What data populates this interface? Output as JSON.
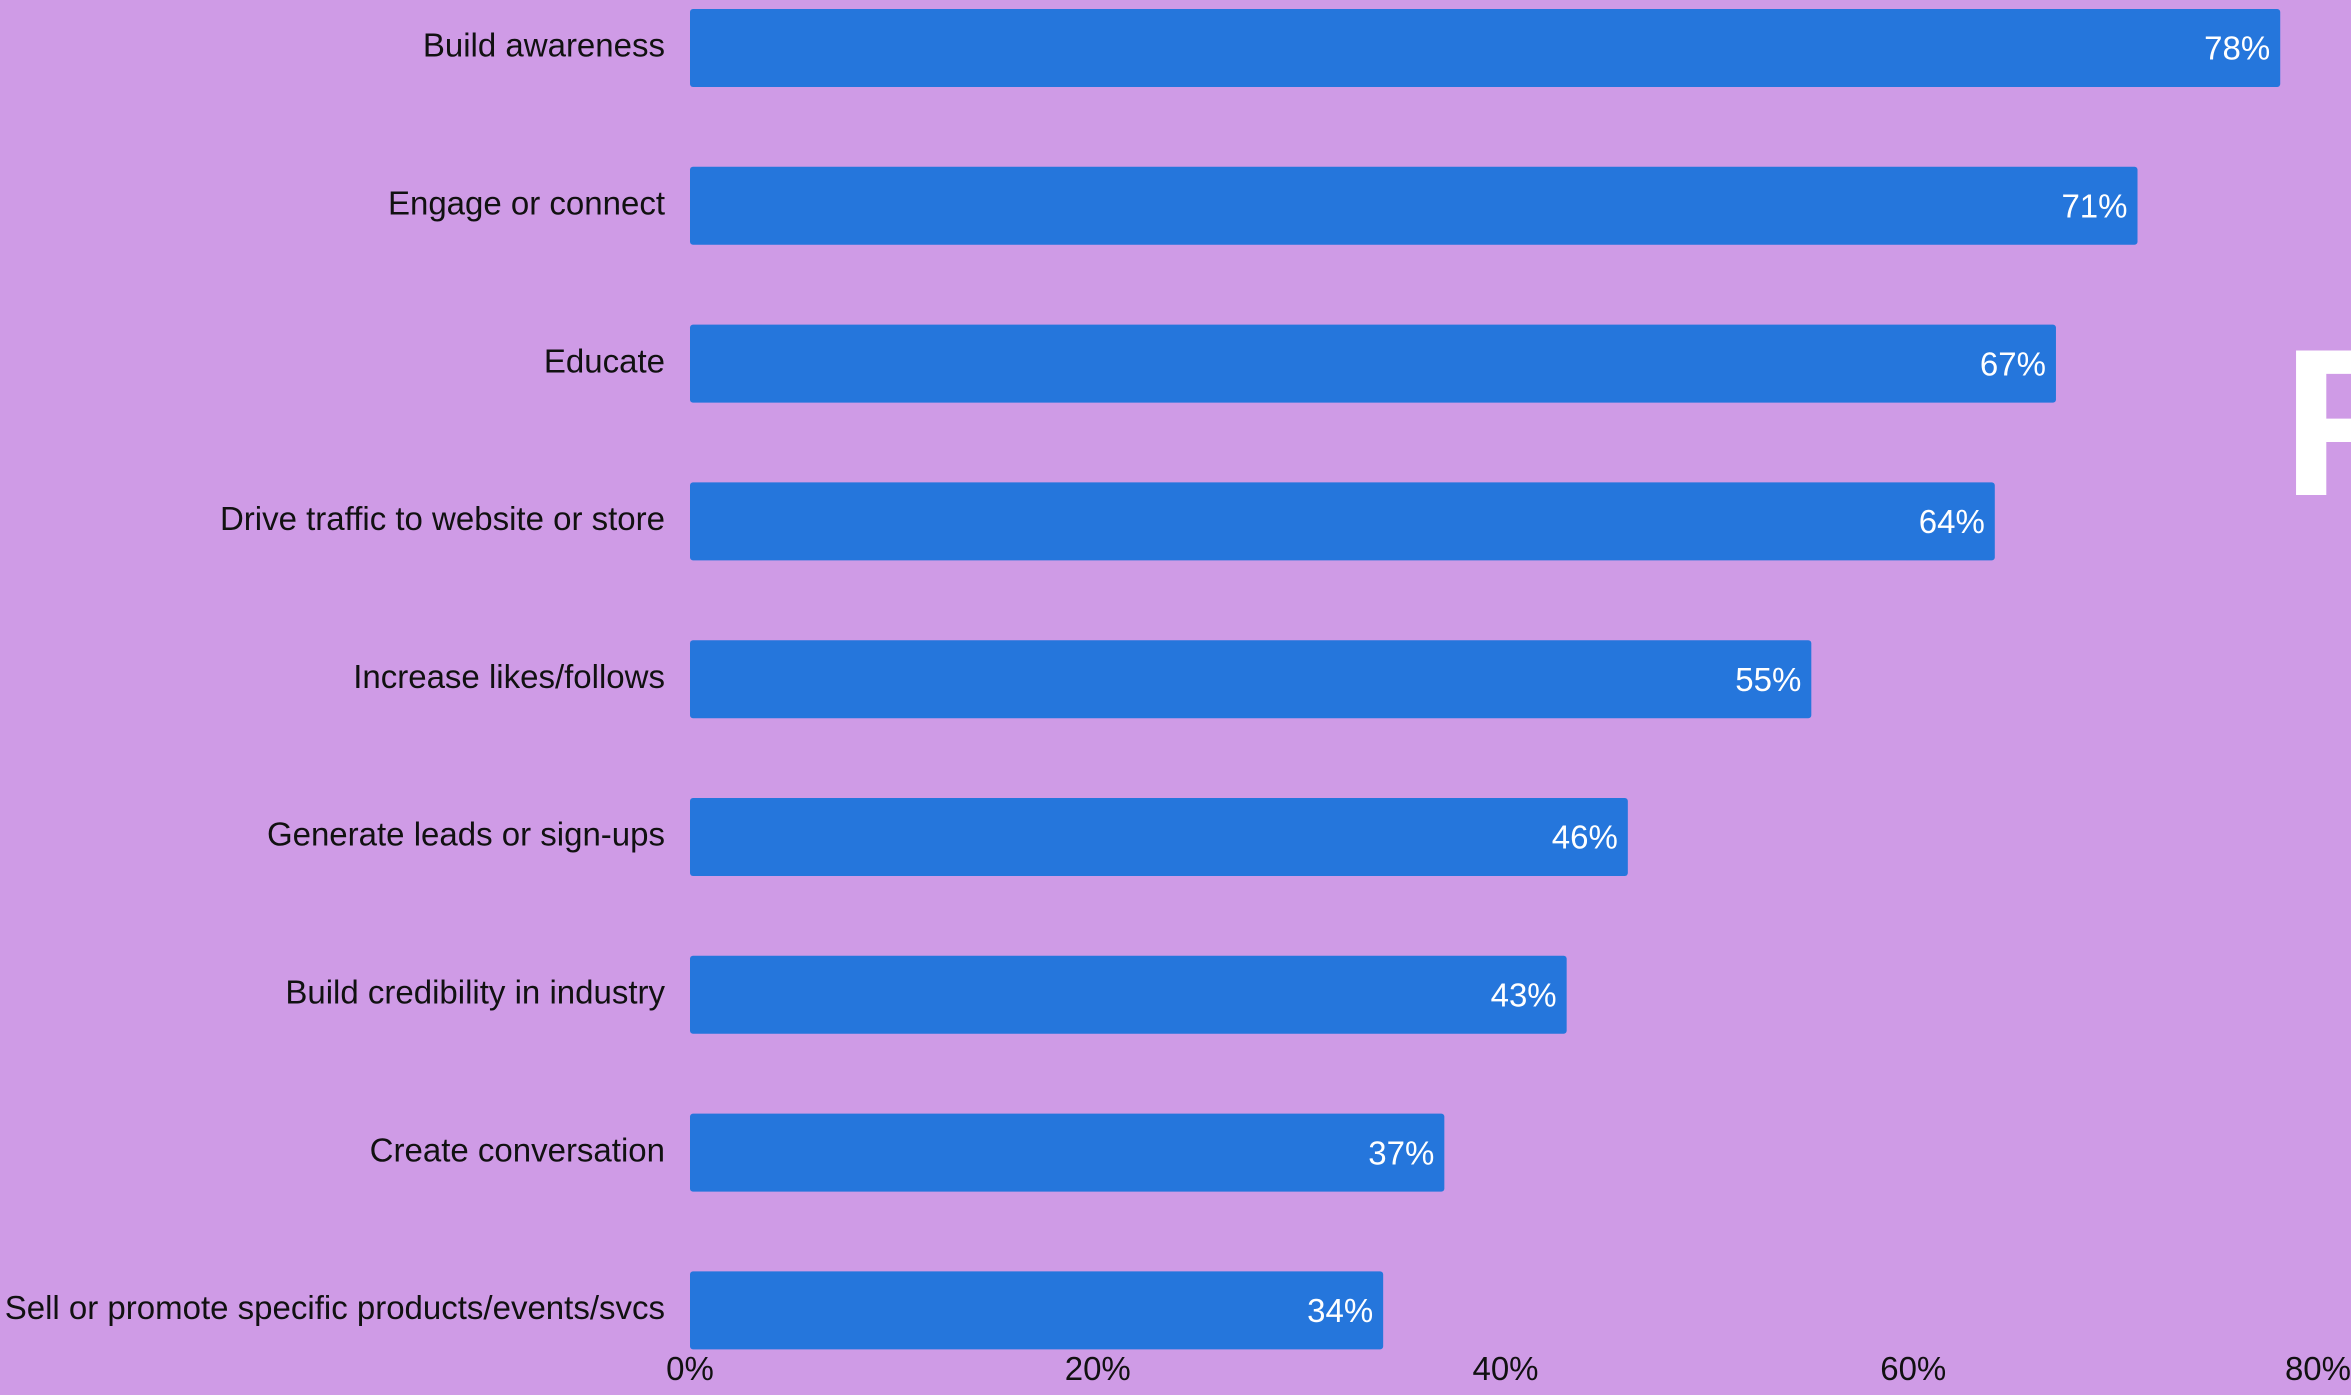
{
  "colors": {
    "background": "#cf9be6",
    "bar": "#2576dc",
    "label_text": "#111111",
    "value_text": "#ffffff"
  },
  "side_text": "F",
  "chart_data": {
    "type": "bar",
    "orientation": "horizontal",
    "categories": [
      "Build awareness",
      "Engage or connect",
      "Educate",
      "Drive traffic to website or store",
      "Increase likes/follows",
      "Generate leads or sign-ups",
      "Build credibility in industry",
      "Create conversation",
      "Sell or promote specific products/events/svcs"
    ],
    "values": [
      78,
      71,
      67,
      64,
      55,
      46,
      43,
      37,
      34
    ],
    "value_labels": [
      "78%",
      "71%",
      "67%",
      "64%",
      "55%",
      "46%",
      "43%",
      "37%",
      "34%"
    ],
    "xlim": [
      0,
      80
    ],
    "xticks": [
      0,
      20,
      40,
      60,
      80
    ],
    "xtick_labels": [
      "0%",
      "20%",
      "40%",
      "60%",
      "80%"
    ],
    "title": "",
    "xlabel": "",
    "ylabel": "",
    "grid": false,
    "legend": "none"
  }
}
